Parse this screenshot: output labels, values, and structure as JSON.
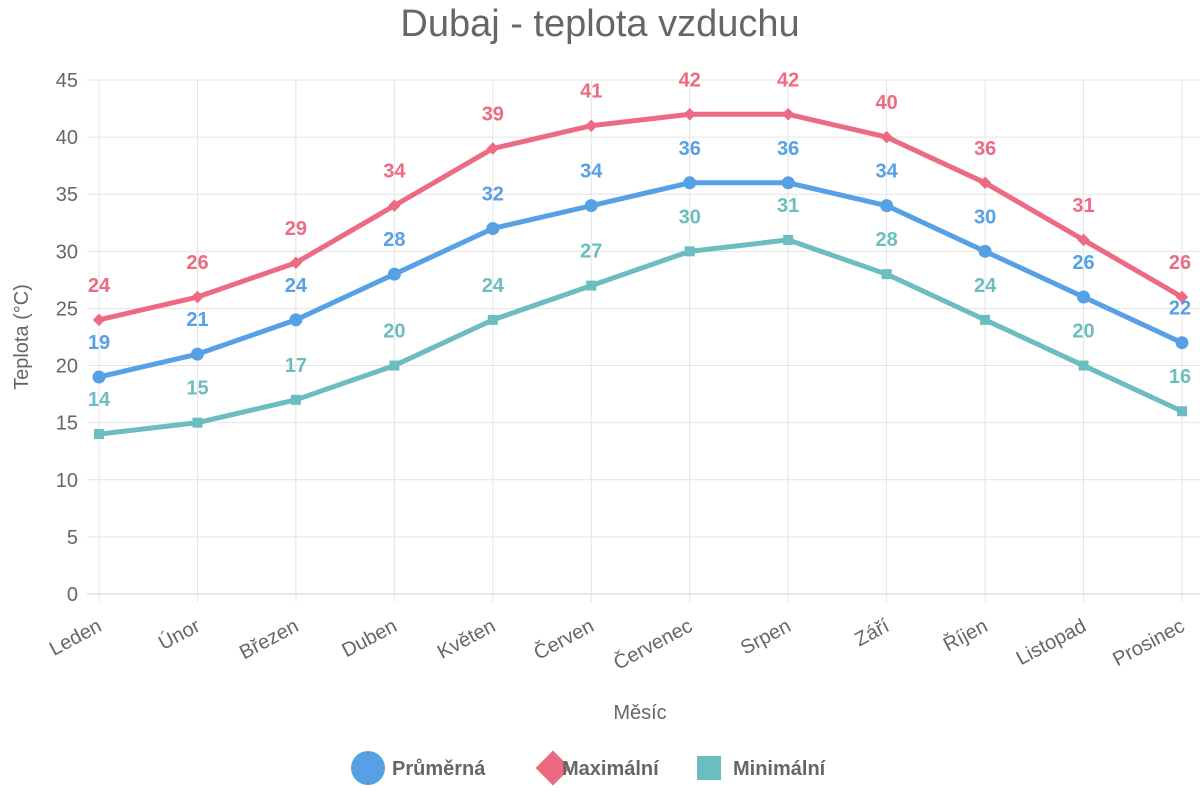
{
  "chart_data": {
    "type": "line",
    "title": "Dubaj - teplota vzduchu",
    "xlabel": "Měsíc",
    "ylabel": "Teplota (°C)",
    "ylim": [
      0,
      45
    ],
    "yticks": [
      0,
      5,
      10,
      15,
      20,
      25,
      30,
      35,
      40,
      45
    ],
    "grid": true,
    "legend": "bottom",
    "categories": [
      "Leden",
      "Únor",
      "Březen",
      "Duben",
      "Květen",
      "Červen",
      "Červenec",
      "Srpen",
      "Září",
      "Říjen",
      "Listopad",
      "Prosinec"
    ],
    "series": [
      {
        "name": "Průměrná",
        "color": "#56a0e5",
        "marker": "circle",
        "values": [
          19,
          21,
          24,
          28,
          32,
          34,
          36,
          36,
          34,
          30,
          26,
          22
        ]
      },
      {
        "name": "Maximální",
        "color": "#ec6b82",
        "marker": "diamond",
        "values": [
          24,
          26,
          29,
          34,
          39,
          41,
          42,
          42,
          40,
          36,
          31,
          26
        ]
      },
      {
        "name": "Minimální",
        "color": "#6cbdbf",
        "marker": "square",
        "values": [
          14,
          15,
          17,
          20,
          24,
          27,
          30,
          31,
          28,
          24,
          20,
          16
        ]
      }
    ]
  }
}
